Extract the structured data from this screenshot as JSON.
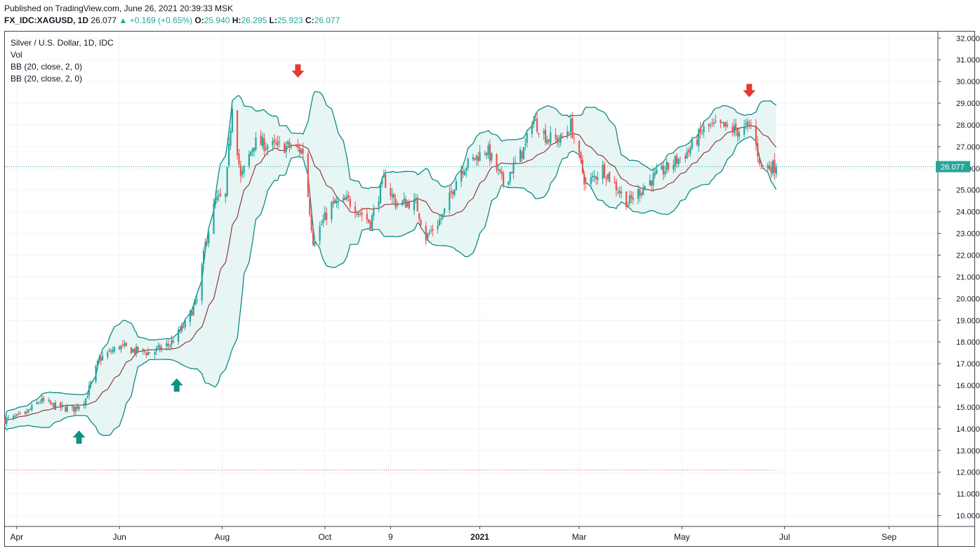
{
  "header": {
    "published": "Published on TradingView.com, June 26, 2021 20:39:33 MSK",
    "symbol": "FX_IDC:XAGUSD, 1D",
    "last": "26.077",
    "change_arrow": "▲",
    "change": "+0.169 (+0.65%)",
    "o_label": "O:",
    "o": "25.940",
    "h_label": "H:",
    "h": "26.295",
    "l_label": "L:",
    "l": "25.923",
    "c_label": "C:",
    "c": "26.077"
  },
  "legend": {
    "title": "Silver / U.S. Dollar, 1D, IDC",
    "vol": "Vol",
    "bb1": "BB (20, close, 2, 0)",
    "bb2": "BB (20, close, 2, 0)"
  },
  "colors": {
    "up": "#26a69a",
    "down": "#ef5350",
    "band": "#0e8a82",
    "band_fill": "#e0f2f1",
    "basis": "#8b2b2b",
    "price_label": "#26a69a",
    "arrow_up": "#0f9184",
    "arrow_down": "#e53935"
  },
  "chart_data": {
    "type": "candlestick",
    "title": "Silver / U.S. Dollar, 1D, IDC",
    "ylim": [
      9.5,
      32.3
    ],
    "y_ticks": [
      "32.000",
      "31.000",
      "30.000",
      "29.000",
      "28.000",
      "27.000",
      "26.000",
      "25.000",
      "24.000",
      "23.000",
      "22.000",
      "21.000",
      "20.000",
      "19.000",
      "18.000",
      "17.000",
      "16.000",
      "15.000",
      "14.000",
      "13.000",
      "12.000",
      "11.000",
      "10.000"
    ],
    "x_ticks": [
      {
        "label": "Apr",
        "date": "2020-04-01"
      },
      {
        "label": "Jun",
        "date": "2020-06-01"
      },
      {
        "label": "Aug",
        "date": "2020-08-01"
      },
      {
        "label": "Oct",
        "date": "2020-10-01"
      },
      {
        "label": "9",
        "date": "2020-11-09"
      },
      {
        "label": "2021",
        "date": "2021-01-01"
      },
      {
        "label": "Mar",
        "date": "2021-03-01"
      },
      {
        "label": "May",
        "date": "2021-05-01"
      },
      {
        "label": "Jul",
        "date": "2021-07-01"
      },
      {
        "label": "Sep",
        "date": "2021-09-01"
      }
    ],
    "x_range": [
      "2020-03-25",
      "2021-09-30"
    ],
    "last_price": {
      "value": 26.077,
      "label": "26.077"
    },
    "reference_level": 12.1,
    "price_path": [
      [
        "2020-03-25",
        14.4
      ],
      [
        "2020-04-05",
        14.6
      ],
      [
        "2020-04-15",
        15.3
      ],
      [
        "2020-04-25",
        15.0
      ],
      [
        "2020-05-05",
        14.9
      ],
      [
        "2020-05-12",
        15.4
      ],
      [
        "2020-05-20",
        17.2
      ],
      [
        "2020-06-01",
        17.8
      ],
      [
        "2020-06-10",
        17.6
      ],
      [
        "2020-06-20",
        17.5
      ],
      [
        "2020-07-01",
        17.9
      ],
      [
        "2020-07-10",
        18.8
      ],
      [
        "2020-07-17",
        19.9
      ],
      [
        "2020-07-22",
        22.5
      ],
      [
        "2020-07-28",
        24.5
      ],
      [
        "2020-08-03",
        24.7
      ],
      [
        "2020-08-07",
        29.0
      ],
      [
        "2020-08-12",
        25.5
      ],
      [
        "2020-08-20",
        27.2
      ],
      [
        "2020-09-01",
        27.0
      ],
      [
        "2020-09-10",
        27.0
      ],
      [
        "2020-09-18",
        26.8
      ],
      [
        "2020-09-24",
        22.7
      ],
      [
        "2020-10-05",
        24.3
      ],
      [
        "2020-10-15",
        24.5
      ],
      [
        "2020-10-28",
        23.5
      ],
      [
        "2020-11-05",
        25.5
      ],
      [
        "2020-11-12",
        24.4
      ],
      [
        "2020-11-24",
        24.4
      ],
      [
        "2020-11-30",
        22.8
      ],
      [
        "2020-12-10",
        23.8
      ],
      [
        "2020-12-20",
        25.9
      ],
      [
        "2021-01-05",
        26.9
      ],
      [
        "2021-01-15",
        25.3
      ],
      [
        "2021-01-28",
        27.0
      ],
      [
        "2021-02-01",
        28.3
      ],
      [
        "2021-02-10",
        27.4
      ],
      [
        "2021-02-18",
        27.3
      ],
      [
        "2021-02-24",
        28.0
      ],
      [
        "2021-03-05",
        25.2
      ],
      [
        "2021-03-15",
        26.0
      ],
      [
        "2021-03-30",
        24.4
      ],
      [
        "2021-04-10",
        25.3
      ],
      [
        "2021-04-22",
        26.0
      ],
      [
        "2021-05-05",
        26.8
      ],
      [
        "2021-05-15",
        27.9
      ],
      [
        "2021-05-25",
        27.9
      ],
      [
        "2021-06-05",
        27.7
      ],
      [
        "2021-06-11",
        28.0
      ],
      [
        "2021-06-17",
        26.1
      ],
      [
        "2021-06-26",
        26.077
      ]
    ],
    "arrows": [
      {
        "type": "up",
        "date": "2020-05-08",
        "y": 13.6
      },
      {
        "type": "up",
        "date": "2020-07-05",
        "y": 16.0
      },
      {
        "type": "down",
        "date": "2020-09-15",
        "y": 30.5
      },
      {
        "type": "down",
        "date": "2021-06-10",
        "y": 29.6
      }
    ]
  }
}
